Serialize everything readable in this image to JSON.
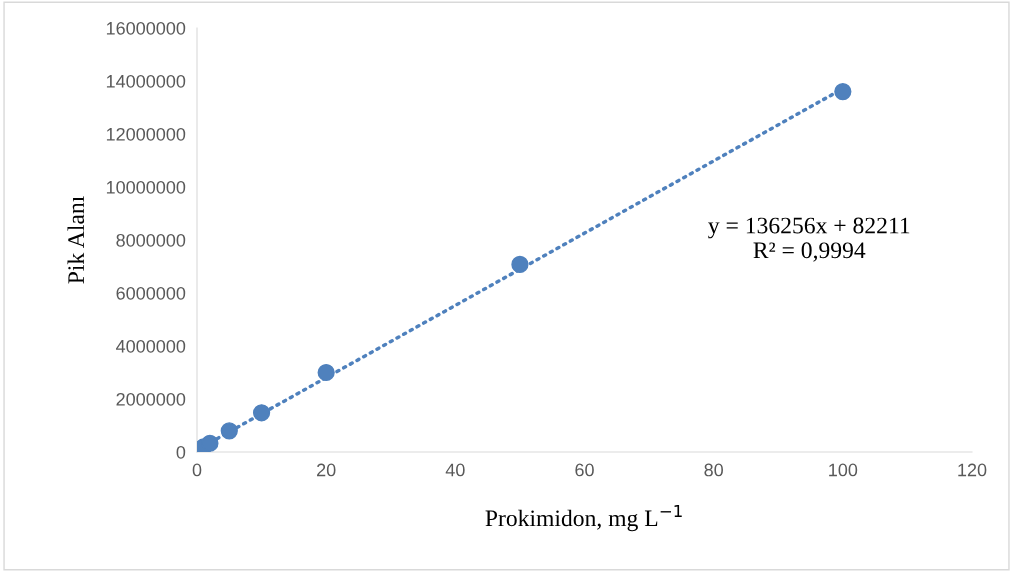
{
  "chart_data": {
    "type": "scatter",
    "xlabel": "Prokimidon, mg L$^{−1}$",
    "ylabel": "Pik Alanı",
    "xlim": [
      0,
      120
    ],
    "xticks": [
      0,
      20,
      40,
      60,
      80,
      100,
      120
    ],
    "ylim": [
      0,
      16000000
    ],
    "yticks": [
      0,
      2000000,
      4000000,
      6000000,
      8000000,
      10000000,
      12000000,
      14000000,
      16000000
    ],
    "grid": false,
    "legend": false,
    "series": [
      {
        "color": "#4f81bd",
        "marker": "circle",
        "x": [
          1,
          2,
          5,
          10,
          20,
          50,
          100
        ],
        "values": [
          190000,
          330000,
          800000,
          1480000,
          3000000,
          7080000,
          13600000
        ]
      },
      {
        "type": "line",
        "color": "#4f81bd",
        "line_style": "dotted",
        "marker": "none",
        "x": [
          0,
          100
        ],
        "values": [
          80000,
          13710000
        ]
      }
    ],
    "annotations": [
      "y = 136256x + 82211\nR² = 0,9994"
    ]
  }
}
